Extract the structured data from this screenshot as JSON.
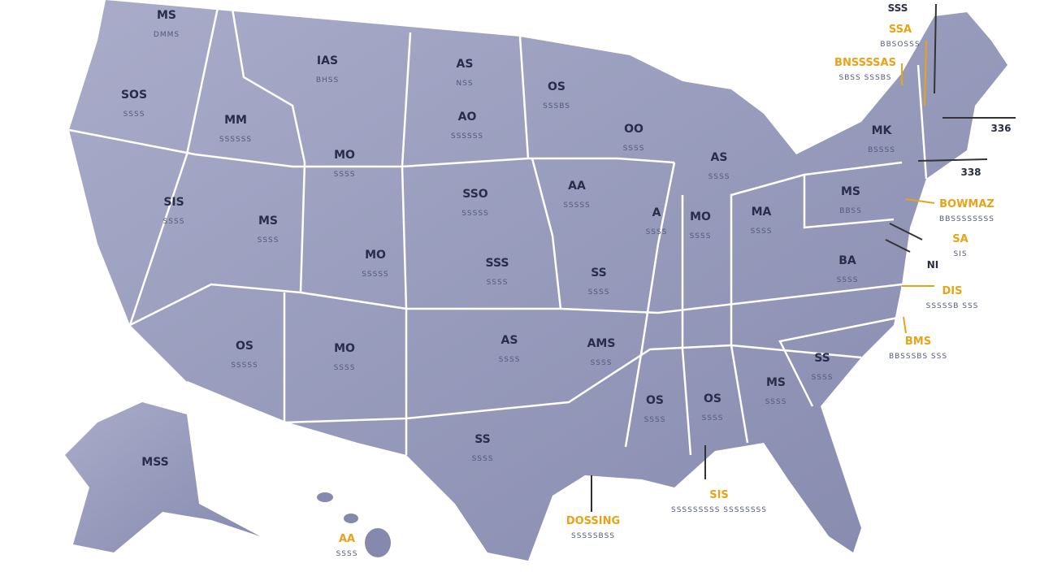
{
  "map": {
    "states": [
      {
        "label": "MS",
        "sub": "DMMS"
      },
      {
        "label": "IAS",
        "sub": "BHSS"
      },
      {
        "label": "AS",
        "sub": "NSS"
      },
      {
        "label": "OS",
        "sub": "SSSBS"
      },
      {
        "label": "SOS",
        "sub": "SSSS"
      },
      {
        "label": "MM",
        "sub": "SSSSSS"
      },
      {
        "label": "OO",
        "sub": "SSSS"
      },
      {
        "label": "MO",
        "sub": "SSSS"
      },
      {
        "label": "AO",
        "sub": "SSSSSS"
      },
      {
        "label": "AS",
        "sub": "SSSS"
      },
      {
        "label": "MK",
        "sub": "BSSSS"
      },
      {
        "label": "MS",
        "sub": "BBSS"
      },
      {
        "label": "SSO",
        "sub": "SSSSS"
      },
      {
        "label": "AA",
        "sub": "SSSSS"
      },
      {
        "label": "SIS",
        "sub": "SSSS"
      },
      {
        "label": "A",
        "sub": "SSSS"
      },
      {
        "label": "MO",
        "sub": "SSSS"
      },
      {
        "label": "MA",
        "sub": "SSSS"
      },
      {
        "label": "MS",
        "sub": "SSSS"
      },
      {
        "label": "MO",
        "sub": "SSSSS"
      },
      {
        "label": "SSS",
        "sub": "SSSS"
      },
      {
        "label": "SS",
        "sub": "SSSS"
      },
      {
        "label": "BA",
        "sub": "SSSS"
      },
      {
        "label": "OS",
        "sub": "SSSSS"
      },
      {
        "label": "MO",
        "sub": "SSSS"
      },
      {
        "label": "AS",
        "sub": "SSSS"
      },
      {
        "label": "AMS",
        "sub": "SSSS"
      },
      {
        "label": "SS",
        "sub": "SSSS"
      },
      {
        "label": "MS",
        "sub": "SSSS"
      },
      {
        "label": "OS",
        "sub": "SSSS"
      },
      {
        "label": "OS",
        "sub": "SSSS"
      },
      {
        "label": "SS",
        "sub": "SSSS"
      },
      {
        "label": "MSS"
      }
    ],
    "callouts": [
      {
        "label": "SSS",
        "style": "dark"
      },
      {
        "label": "SSA",
        "sub": "BBSOSSS",
        "style": "yellow"
      },
      {
        "label": "BNSSSSAS",
        "sub": "SBSS SSSBS",
        "style": "yellow"
      },
      {
        "label": "336",
        "style": "dark"
      },
      {
        "label": "338",
        "style": "dark"
      },
      {
        "label": "BOWMAZ",
        "sub": "BBSSSSSSSS",
        "style": "yellow"
      },
      {
        "label": "SA",
        "sub": "SIS",
        "style": "yellow"
      },
      {
        "label": "NI",
        "style": "dark"
      },
      {
        "label": "DIS",
        "sub": "SSSSSB SSS",
        "style": "yellow"
      },
      {
        "label": "BMS",
        "sub": "BBSSSBS SSS",
        "style": "yellow"
      },
      {
        "label": "SIS",
        "sub": "SSSSSSSSS SSSSSSSS",
        "style": "yellow"
      },
      {
        "label": "DOSSING",
        "sub": "SSSSSBSS",
        "style": "yellow"
      },
      {
        "label": "AA",
        "sub": "SSSS",
        "style": "yellow"
      }
    ]
  }
}
